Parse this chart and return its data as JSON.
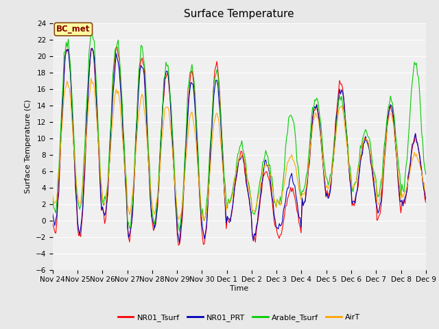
{
  "title": "Surface Temperature",
  "ylabel": "Surface Temperature (C)",
  "xlabel": "Time",
  "ylim": [
    -6,
    24
  ],
  "annotation": "BC_met",
  "series_colors": {
    "NR01_Tsurf": "#FF0000",
    "NR01_PRT": "#0000BB",
    "Arable_Tsurf": "#00CC00",
    "AirT": "#FFA500"
  },
  "legend_labels": [
    "NR01_Tsurf",
    "NR01_PRT",
    "Arable_Tsurf",
    "AirT"
  ],
  "tick_labels": [
    "Nov 24",
    "Nov 25",
    "Nov 26",
    "Nov 27",
    "Nov 28",
    "Nov 29",
    "Nov 30",
    "Dec 1",
    "Dec 2",
    "Dec 3",
    "Dec 4",
    "Dec 5",
    "Dec 6",
    "Dec 7",
    "Dec 8",
    "Dec 9"
  ],
  "bg_color": "#E8E8E8",
  "plot_bg_color": "#F0F0F0",
  "linewidth": 0.8,
  "title_fontsize": 11,
  "axis_fontsize": 8,
  "tick_fontsize": 7.5,
  "legend_fontsize": 8
}
